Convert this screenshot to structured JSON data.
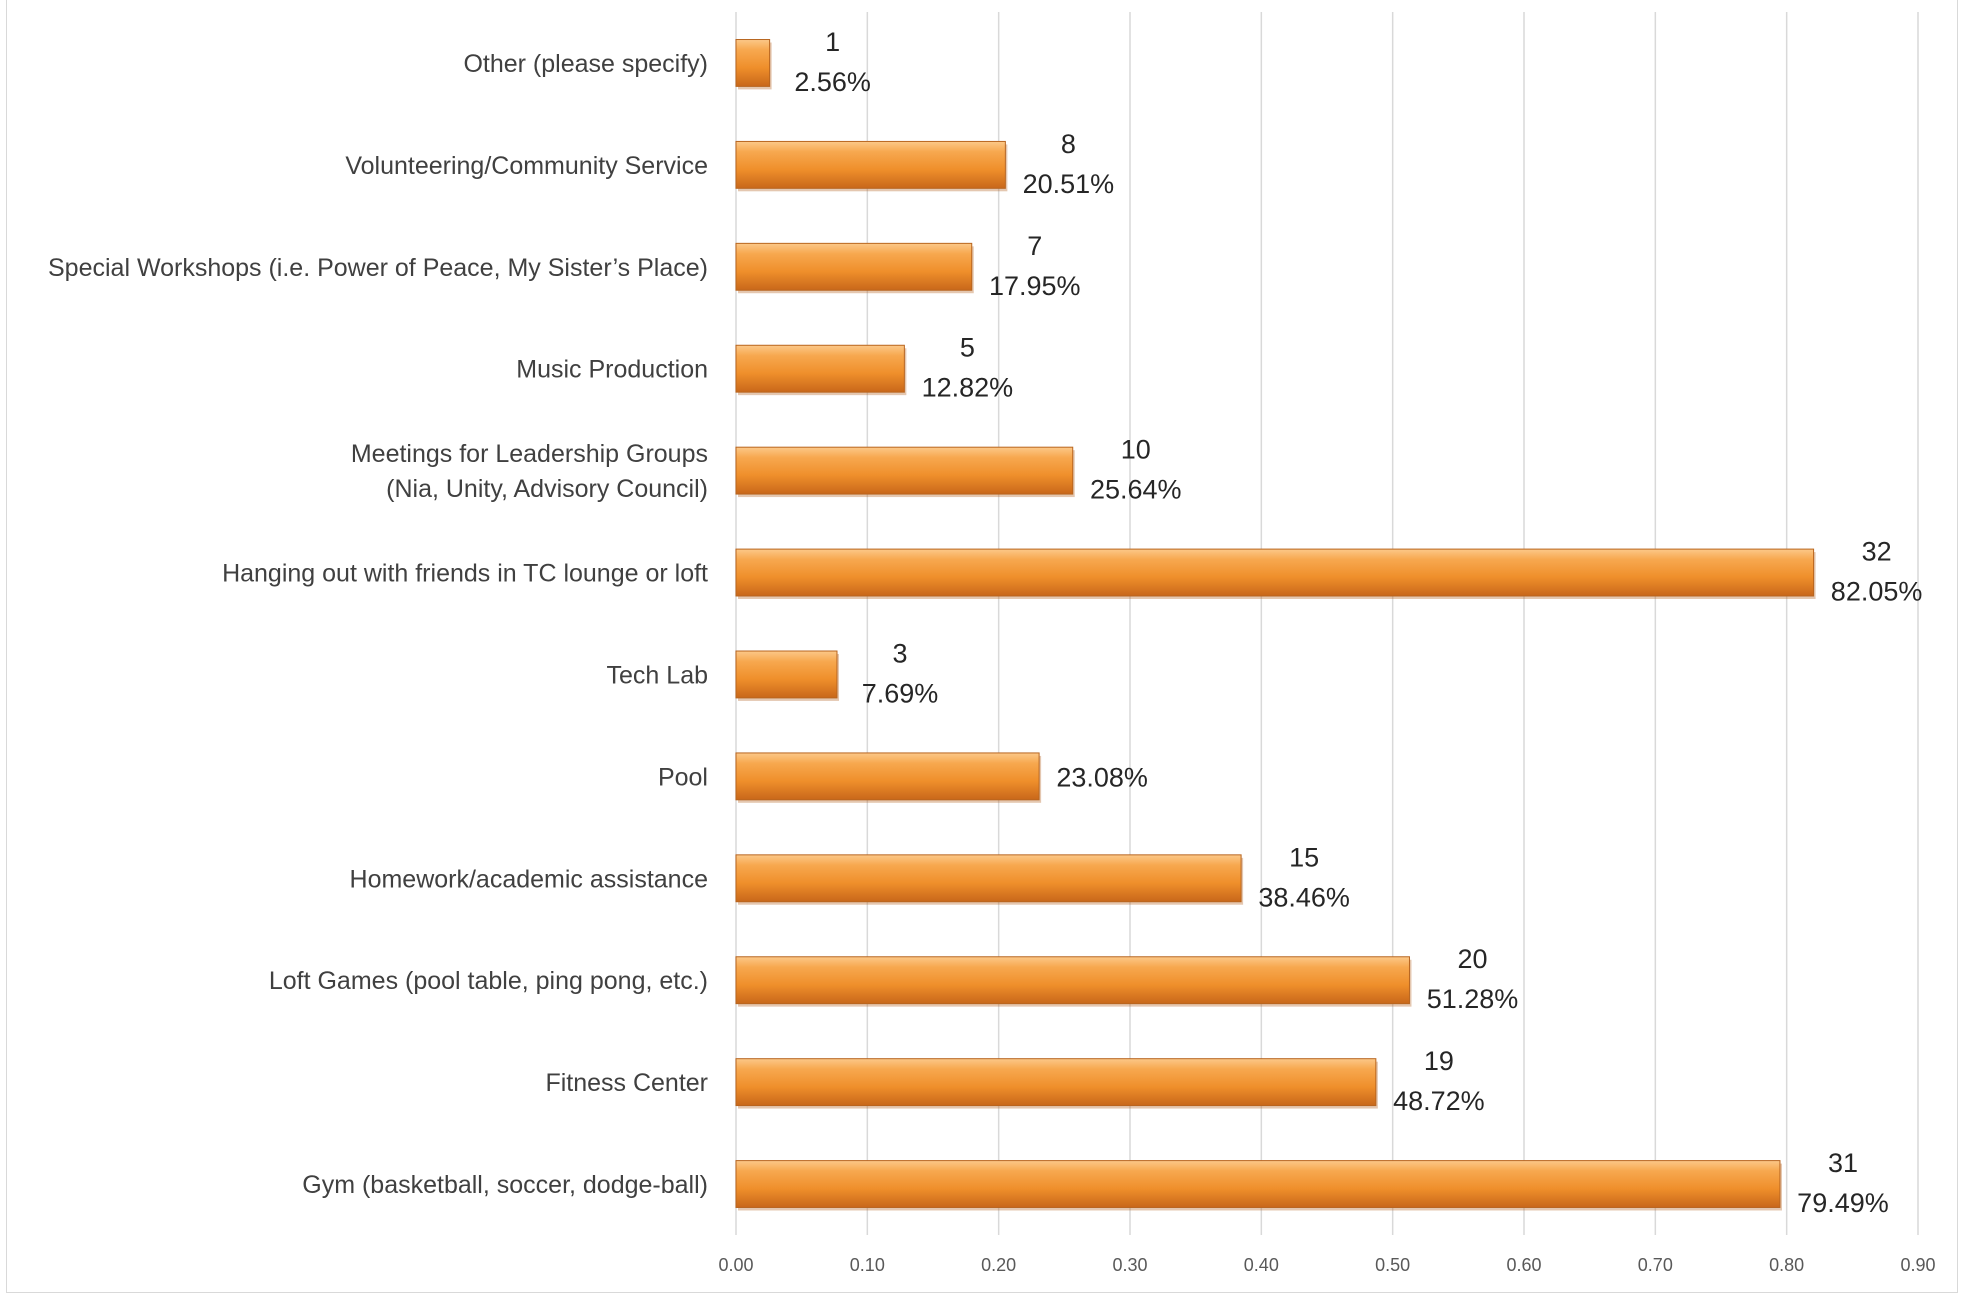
{
  "chart_data": {
    "type": "bar",
    "orientation": "horizontal",
    "title": "",
    "xlabel": "",
    "ylabel": "",
    "xlim": [
      0,
      0.9
    ],
    "grid": true,
    "bar_color": "#f0922e",
    "ticks": [
      "0.00",
      "0.10",
      "0.20",
      "0.30",
      "0.40",
      "0.50",
      "0.60",
      "0.70",
      "0.80",
      "0.90"
    ],
    "categories": [
      [
        "Other (please specify)"
      ],
      [
        "Volunteering/Community Service"
      ],
      [
        "Special Workshops (i.e. Power of Peace, My Sister’s Place)"
      ],
      [
        "Music Production"
      ],
      [
        "Meetings for Leadership Groups",
        "(Nia, Unity, Advisory Council)"
      ],
      [
        "Hanging out with friends in TC lounge or loft"
      ],
      [
        "Tech Lab"
      ],
      [
        "Pool"
      ],
      [
        "Homework/academic assistance"
      ],
      [
        "Loft Games (pool table, ping pong, etc.)"
      ],
      [
        "Fitness Center"
      ],
      [
        "Gym (basketball, soccer, dodge-ball)"
      ]
    ],
    "values": [
      0.0256,
      0.2051,
      0.1795,
      0.1282,
      0.2564,
      0.8205,
      0.0769,
      0.2308,
      0.3846,
      0.5128,
      0.4872,
      0.7949
    ],
    "counts": [
      "1",
      "8",
      "7",
      "5",
      "10",
      "32",
      "3",
      "",
      "15",
      "20",
      "19",
      "31"
    ],
    "percent_labels": [
      "2.56%",
      "20.51%",
      "17.95%",
      "12.82%",
      "25.64%",
      "82.05%",
      "7.69%",
      "23.08%",
      "38.46%",
      "51.28%",
      "48.72%",
      "79.49%"
    ]
  }
}
